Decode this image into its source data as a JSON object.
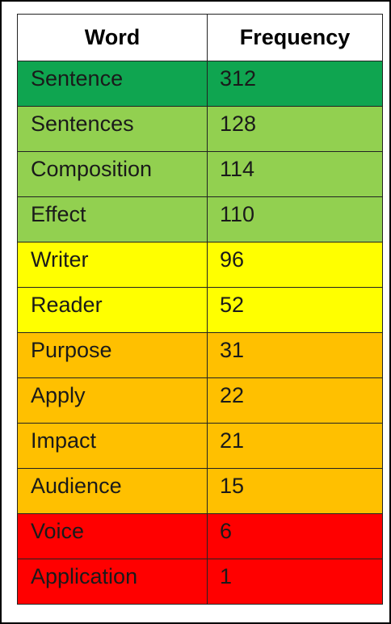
{
  "chart_data": {
    "type": "table",
    "columns": [
      "Word",
      "Frequency"
    ],
    "rows": [
      {
        "word": "Sentence",
        "frequency": 312,
        "color": "#0fa550"
      },
      {
        "word": "Sentences",
        "frequency": 128,
        "color": "#92d050"
      },
      {
        "word": "Composition",
        "frequency": 114,
        "color": "#92d050"
      },
      {
        "word": "Effect",
        "frequency": 110,
        "color": "#92d050"
      },
      {
        "word": "Writer",
        "frequency": 96,
        "color": "#ffff00"
      },
      {
        "word": "Reader",
        "frequency": 52,
        "color": "#ffff00"
      },
      {
        "word": "Purpose",
        "frequency": 31,
        "color": "#ffc000"
      },
      {
        "word": "Apply",
        "frequency": 22,
        "color": "#ffc000"
      },
      {
        "word": "Impact",
        "frequency": 21,
        "color": "#ffc000"
      },
      {
        "word": "Audience",
        "frequency": 15,
        "color": "#ffc000"
      },
      {
        "word": "Voice",
        "frequency": 6,
        "color": "#ff0000"
      },
      {
        "word": "Application",
        "frequency": 1,
        "color": "#ff0000"
      }
    ]
  }
}
